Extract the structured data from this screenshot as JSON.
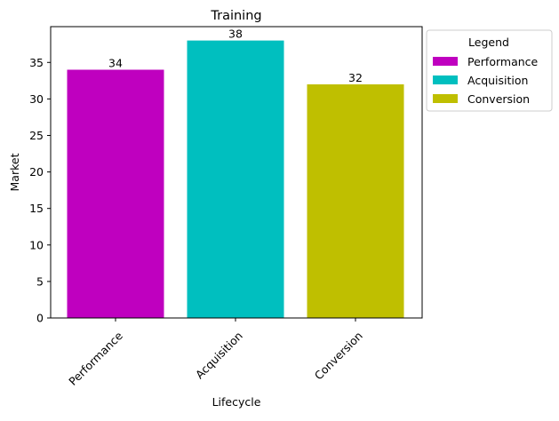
{
  "chart_data": {
    "type": "bar",
    "title": "Training",
    "xlabel": "Lifecycle",
    "ylabel": "Market",
    "categories": [
      "Performance",
      "Acquisition",
      "Conversion"
    ],
    "values": [
      34,
      38,
      32
    ],
    "colors": [
      "#bf00bf",
      "#00bfbf",
      "#bfbf00"
    ],
    "ylim": [
      0,
      39.9
    ],
    "yticks": [
      0,
      5,
      10,
      15,
      20,
      25,
      30,
      35
    ],
    "grid": false,
    "legend": {
      "title": "Legend",
      "placement": "outside-upper-right",
      "entries": [
        "Performance",
        "Acquisition",
        "Conversion"
      ]
    },
    "data_labels": [
      "34",
      "38",
      "32"
    ]
  }
}
